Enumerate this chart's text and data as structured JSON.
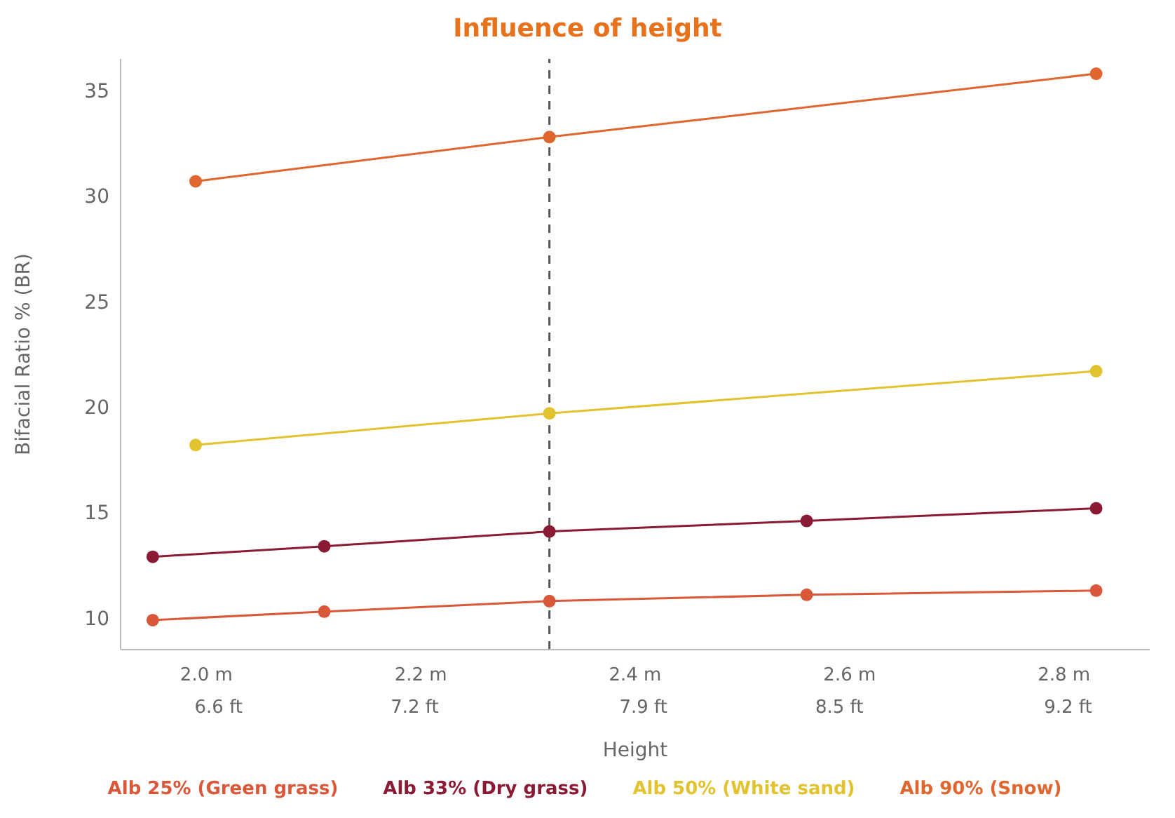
{
  "chart_data": {
    "type": "line",
    "title": "Influence of height",
    "xlabel": "Height",
    "ylabel": "Bifacial Ratio % (BR)",
    "xlim": [
      1.92,
      2.88
    ],
    "xticks": [
      {
        "value": 2.0,
        "label": "2.0 m"
      },
      {
        "value": 2.2,
        "label": "2.2 m"
      },
      {
        "value": 2.4,
        "label": "2.4 m"
      },
      {
        "value": 2.6,
        "label": "2.6 m"
      },
      {
        "value": 2.8,
        "label": "2.8 m"
      }
    ],
    "x2lim": [
      6.3,
      9.45
    ],
    "x2ticks": [
      {
        "value": 6.6,
        "label": "6.6 ft"
      },
      {
        "value": 7.2,
        "label": "7.2 ft"
      },
      {
        "value": 7.9,
        "label": "7.9 ft"
      },
      {
        "value": 8.5,
        "label": "8.5 ft"
      },
      {
        "value": 9.2,
        "label": "9.2 ft"
      }
    ],
    "ylim": [
      8.5,
      36.5
    ],
    "yticks": [
      10,
      15,
      20,
      25,
      30,
      35
    ],
    "legend": "bottom",
    "marker": "circle",
    "line_style": "solid",
    "ref_lines": [
      {
        "axis": "x",
        "value": 2.32,
        "color": "#555555",
        "line_style": "dashed"
      }
    ],
    "series": [
      {
        "name": "Alb 25% (Green grass)",
        "color": "#d9583a",
        "x": [
          1.95,
          2.11,
          2.32,
          2.56,
          2.83
        ],
        "values": [
          9.9,
          10.3,
          10.8,
          11.1,
          11.3
        ]
      },
      {
        "name": "Alb 33% (Dry grass)",
        "color": "#8b1a35",
        "x": [
          1.95,
          2.11,
          2.32,
          2.56,
          2.83
        ],
        "values": [
          12.9,
          13.4,
          14.1,
          14.6,
          15.2
        ]
      },
      {
        "name": "Alb 50% (White sand)",
        "color": "#e2c22f",
        "x": [
          1.99,
          2.32,
          2.83
        ],
        "values": [
          18.2,
          19.7,
          21.7
        ]
      },
      {
        "name": "Alb 90% (Snow)",
        "color": "#e0662f",
        "x": [
          1.99,
          2.32,
          2.83
        ],
        "values": [
          30.7,
          32.8,
          35.8
        ]
      }
    ]
  }
}
